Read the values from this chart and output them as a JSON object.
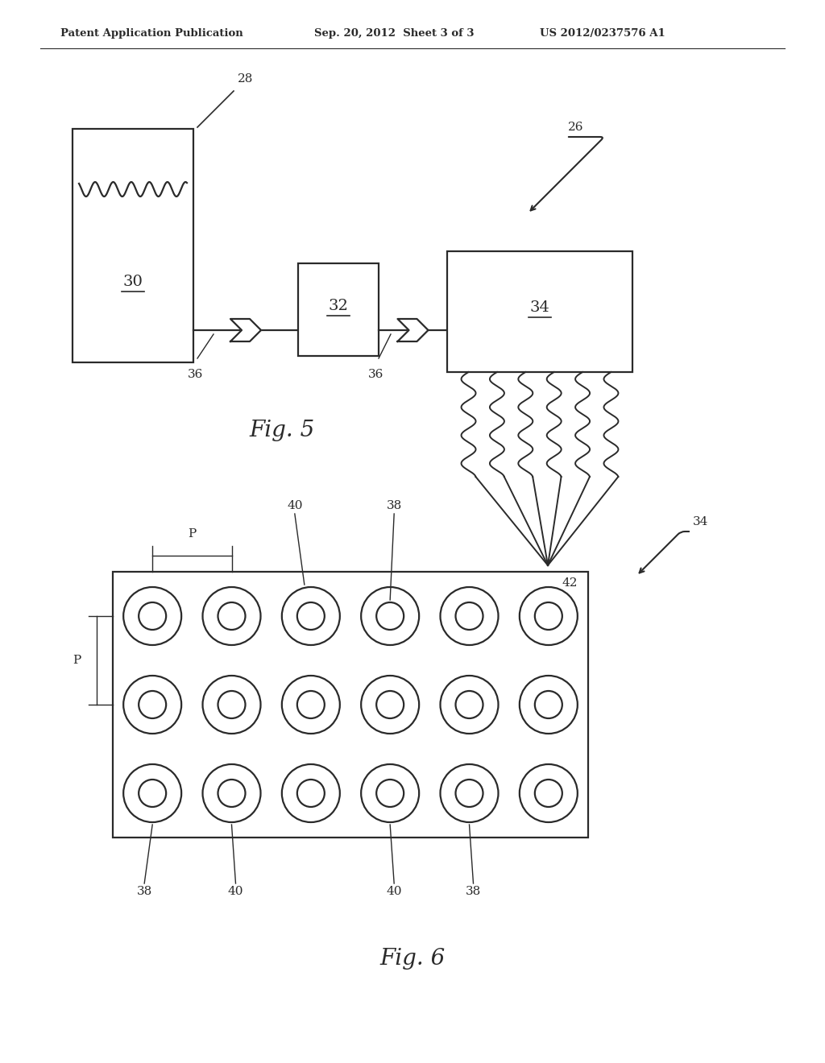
{
  "bg_color": "#ffffff",
  "line_color": "#2a2a2a",
  "header_left": "Patent Application Publication",
  "header_mid": "Sep. 20, 2012  Sheet 3 of 3",
  "header_right": "US 2012/0237576 A1"
}
